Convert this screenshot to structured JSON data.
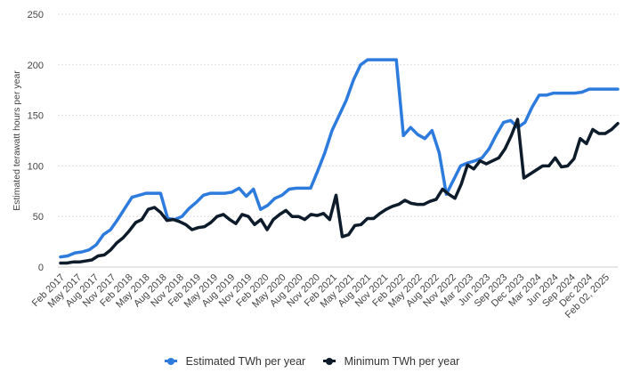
{
  "chart_data": {
    "type": "line",
    "ylabel": "Estimated terawatt hours per year",
    "ylim": [
      0,
      250
    ],
    "yticks": [
      0,
      50,
      100,
      150,
      200,
      250
    ],
    "grid": "horizontal-dashed",
    "legend_position": "bottom",
    "x_tick_labels": [
      "Feb 2017",
      "May 2017",
      "Aug 2017",
      "Nov 2017",
      "Feb 2018",
      "May 2018",
      "Aug 2018",
      "Nov 2018",
      "Feb 2019",
      "May 2019",
      "Aug 2019",
      "Nov 2019",
      "Feb 2020",
      "May 2020",
      "Aug 2020",
      "Nov 2020",
      "Feb 2021",
      "May 2021",
      "Aug 2021",
      "Nov 2021",
      "Feb 2022",
      "May 2022",
      "Aug 2022",
      "Nov 2022",
      "Mar 2023",
      "Jun 2023",
      "Sep 2023",
      "Dec 2023",
      "Mar 2024",
      "Jun 2024",
      "Sep 2024",
      "Dec 2024",
      "Feb 02, 2025"
    ],
    "series": [
      {
        "name": "Estimated TWh per year",
        "color": "#2e7bde",
        "points": [
          [
            0,
            10
          ],
          [
            0.5,
            11
          ],
          [
            1,
            14
          ],
          [
            1.5,
            15
          ],
          [
            2,
            17
          ],
          [
            2.5,
            22
          ],
          [
            3,
            32
          ],
          [
            3.5,
            37
          ],
          [
            4,
            47
          ],
          [
            4.5,
            58
          ],
          [
            5,
            69
          ],
          [
            5.5,
            71
          ],
          [
            6,
            73
          ],
          [
            6.5,
            73
          ],
          [
            7,
            73
          ],
          [
            7.5,
            48
          ],
          [
            8,
            47
          ],
          [
            8.5,
            50
          ],
          [
            9,
            58
          ],
          [
            9.5,
            64
          ],
          [
            10,
            71
          ],
          [
            10.5,
            73
          ],
          [
            11,
            73
          ],
          [
            11.5,
            73
          ],
          [
            12,
            74
          ],
          [
            12.5,
            78
          ],
          [
            13,
            70
          ],
          [
            13.5,
            77
          ],
          [
            14,
            57
          ],
          [
            14.5,
            61
          ],
          [
            15,
            68
          ],
          [
            15.5,
            71
          ],
          [
            16,
            77
          ],
          [
            16.5,
            78
          ],
          [
            17,
            78
          ],
          [
            17.5,
            78
          ],
          [
            18,
            95
          ],
          [
            18.5,
            113
          ],
          [
            19,
            135
          ],
          [
            19.5,
            150
          ],
          [
            20,
            165
          ],
          [
            20.5,
            185
          ],
          [
            21,
            200
          ],
          [
            21.5,
            205
          ],
          [
            22,
            205
          ],
          [
            22.5,
            205
          ],
          [
            23,
            205
          ],
          [
            23.5,
            205
          ],
          [
            24,
            130
          ],
          [
            24.5,
            138
          ],
          [
            25,
            131
          ],
          [
            25.5,
            127
          ],
          [
            26,
            135
          ],
          [
            26.5,
            113
          ],
          [
            27,
            72
          ],
          [
            27.5,
            86
          ],
          [
            28,
            100
          ],
          [
            28.5,
            103
          ],
          [
            29,
            105
          ],
          [
            29.5,
            108
          ],
          [
            30,
            117
          ],
          [
            30.5,
            131
          ],
          [
            31,
            143
          ],
          [
            31.5,
            145
          ],
          [
            32,
            138
          ],
          [
            32.5,
            143
          ],
          [
            33,
            158
          ],
          [
            33.5,
            170
          ],
          [
            34,
            170
          ],
          [
            34.5,
            172
          ],
          [
            35,
            172
          ],
          [
            35.5,
            172
          ],
          [
            36,
            172
          ],
          [
            36.5,
            173
          ],
          [
            37,
            176
          ],
          [
            37.5,
            176
          ],
          [
            38,
            176
          ],
          [
            38.5,
            176
          ],
          [
            39,
            176
          ]
        ]
      },
      {
        "name": "Minimum TWh per year",
        "color": "#0d1b2a",
        "points": [
          [
            0,
            4
          ],
          [
            0.5,
            4
          ],
          [
            1,
            5
          ],
          [
            1.5,
            5
          ],
          [
            2,
            6
          ],
          [
            2.5,
            7
          ],
          [
            3,
            11
          ],
          [
            3.5,
            12
          ],
          [
            4,
            17
          ],
          [
            4.5,
            24
          ],
          [
            5,
            29
          ],
          [
            5.5,
            36
          ],
          [
            6,
            44
          ],
          [
            6.5,
            47
          ],
          [
            7,
            57
          ],
          [
            7.5,
            59
          ],
          [
            8,
            54
          ],
          [
            8.5,
            46
          ],
          [
            9,
            47
          ],
          [
            9.5,
            45
          ],
          [
            10,
            42
          ],
          [
            10.5,
            37
          ],
          [
            11,
            39
          ],
          [
            11.5,
            40
          ],
          [
            12,
            44
          ],
          [
            12.5,
            50
          ],
          [
            13,
            52
          ],
          [
            13.5,
            47
          ],
          [
            14,
            43
          ],
          [
            14.5,
            52
          ],
          [
            15,
            50
          ],
          [
            15.5,
            42
          ],
          [
            16,
            47
          ],
          [
            16.5,
            37
          ],
          [
            17,
            47
          ],
          [
            17.5,
            52
          ],
          [
            18,
            56
          ],
          [
            18.5,
            50
          ],
          [
            19,
            50
          ],
          [
            19.5,
            47
          ],
          [
            20,
            52
          ],
          [
            20.5,
            51
          ],
          [
            21,
            53
          ],
          [
            21.5,
            47
          ],
          [
            22,
            71
          ],
          [
            22.5,
            30
          ],
          [
            23,
            32
          ],
          [
            23.5,
            41
          ],
          [
            24,
            42
          ],
          [
            24.5,
            48
          ],
          [
            25,
            48
          ],
          [
            25.5,
            53
          ],
          [
            26,
            57
          ],
          [
            26.5,
            60
          ],
          [
            27,
            62
          ],
          [
            27.5,
            66
          ],
          [
            28,
            63
          ],
          [
            28.5,
            62
          ],
          [
            29,
            62
          ],
          [
            29.5,
            65
          ],
          [
            30,
            67
          ],
          [
            30.5,
            77
          ],
          [
            31,
            72
          ],
          [
            31.5,
            68
          ],
          [
            32,
            82
          ],
          [
            32.5,
            101
          ],
          [
            33,
            97
          ],
          [
            33.5,
            105
          ],
          [
            34,
            102
          ],
          [
            34.5,
            105
          ],
          [
            35,
            108
          ],
          [
            35.5,
            117
          ],
          [
            36,
            130
          ],
          [
            36.5,
            146
          ],
          [
            37,
            88
          ],
          [
            37.5,
            92
          ],
          [
            38,
            96
          ],
          [
            38.5,
            100
          ],
          [
            39,
            100
          ],
          [
            39.5,
            108
          ],
          [
            40,
            99
          ],
          [
            40.5,
            100
          ],
          [
            41,
            107
          ],
          [
            41.5,
            127
          ],
          [
            42,
            122
          ],
          [
            42.5,
            136
          ],
          [
            43,
            132
          ],
          [
            43.5,
            132
          ],
          [
            44,
            136
          ],
          [
            44.5,
            142
          ]
        ]
      }
    ]
  },
  "legend": {
    "items": [
      {
        "label": "Estimated TWh per year",
        "color": "#2e7bde"
      },
      {
        "label": "Minimum TWh per year",
        "color": "#0d1b2a"
      }
    ]
  }
}
